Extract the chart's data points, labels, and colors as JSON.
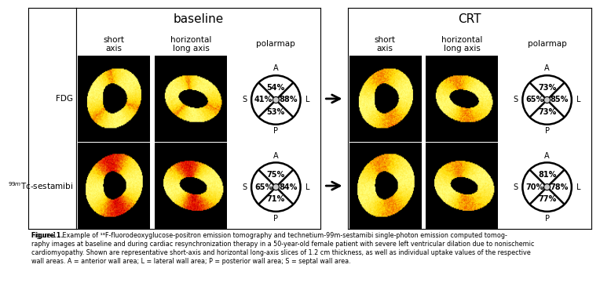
{
  "title_baseline": "baseline",
  "title_crt": "CRT",
  "col_headers": [
    "short\naxis",
    "horizontal\nlong axis",
    "polarmap"
  ],
  "row_labels": [
    "FDG",
    "$^{99m}$Tc-sestamibi"
  ],
  "polarmaps": {
    "baseline_fdg": {
      "A": "54%",
      "S": "41%",
      "L": "88%",
      "P": "53%"
    },
    "baseline_tc": {
      "A": "75%",
      "S": "65%",
      "L": "84%",
      "P": "71%"
    },
    "crt_fdg": {
      "A": "73%",
      "S": "65%",
      "L": "85%",
      "P": "73%"
    },
    "crt_tc": {
      "A": "81%",
      "S": "70%",
      "L": "78%",
      "P": "77%"
    }
  },
  "caption_bold": "Figure 1.",
  "caption_rest": "  Example of ¹⁸F-fluorodeoxyglucose-positron emission tomography and technetium-99m-sestamibi single-photon emission computed tomog-\nraphy images at baseline and during cardiac resynchronization therapy in a 50-year-old female patient with severe left ventricular dilation due to nonischemic\ncardiomyopathy. Shown are representative short-axis and horizontal long-axis slices of 1.2 cm thickness, as well as individual uptake values of the respective\nwall areas. A = anterior wall area; L = lateral wall area; P = posterior wall area; S = septal wall area.",
  "font_size_title": 11,
  "font_size_header": 7.5,
  "font_size_row_label": 7.5,
  "font_size_polar": 7,
  "font_size_caption": 5.8
}
